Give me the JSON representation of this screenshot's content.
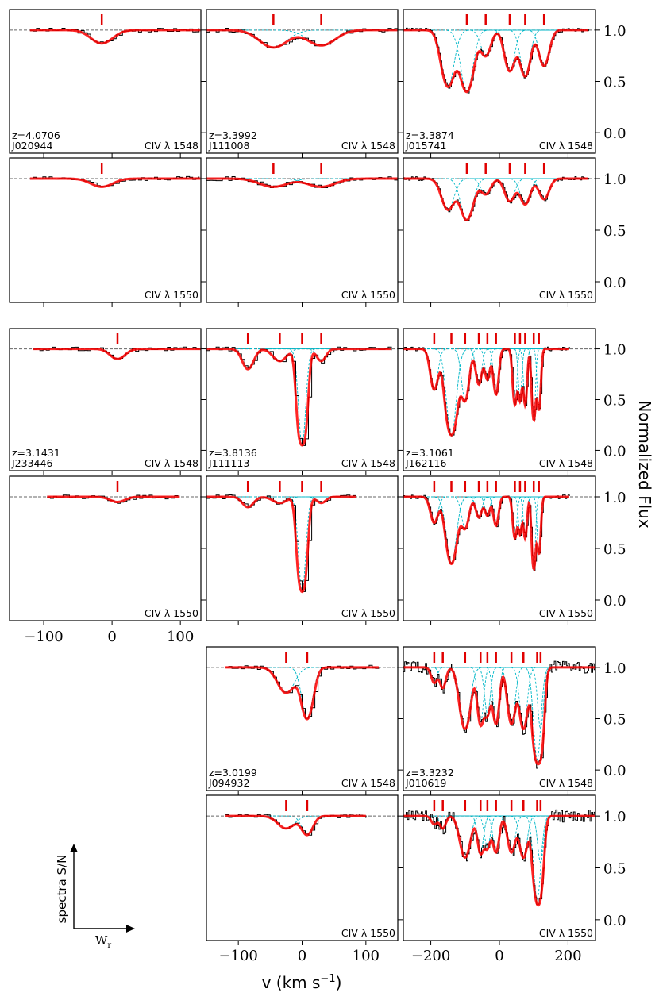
{
  "figure": {
    "ylabel": "Normalized Flux",
    "xlabel_main": "v (km s",
    "xlabel_sup": "−1",
    "xlabel_close": ")",
    "legend_axis_y": "spectra S/N",
    "legend_axis_x": "W",
    "legend_axis_x_sub": "r"
  },
  "chart_data": {
    "type": "line",
    "x_range_left": [
      -150,
      130
    ],
    "x_range_mid": [
      -150,
      150
    ],
    "x_range_right": [
      -280,
      280
    ],
    "y_range": [
      -0.2,
      1.2
    ],
    "ticks_x_left": [
      "−100",
      "0",
      "100"
    ],
    "ticks_x_mid": [
      "−100",
      "0",
      "100"
    ],
    "ticks_x_right": [
      "−200",
      "0",
      "200"
    ],
    "ticks_y": [
      "0.0",
      "0.5",
      "1.0"
    ],
    "colors": {
      "data": "#000000",
      "fit": "#ff0000",
      "component": "#00b7c7",
      "marker": "#e00000",
      "continuum": "#666666"
    },
    "panels": [
      {
        "row": 0,
        "col": 0,
        "line": "CIV λ 1548",
        "z": "z=4.0706",
        "id": "J020944",
        "vrange": [
          -120,
          130
        ],
        "comps": [
          {
            "v": -15,
            "d": 0.13,
            "b": 22
          }
        ],
        "marks": [
          -15
        ]
      },
      {
        "row": 0,
        "col": 1,
        "line": "CIV λ 1548",
        "z": "z=3.3992",
        "id": "J111008",
        "vrange": [
          -150,
          150
        ],
        "comps": [
          {
            "v": -45,
            "d": 0.17,
            "b": 30
          },
          {
            "v": 30,
            "d": 0.15,
            "b": 30
          }
        ],
        "marks": [
          -45,
          30
        ]
      },
      {
        "row": 0,
        "col": 2,
        "line": "CIV λ 1548",
        "z": "z=3.3874",
        "id": "J015741",
        "vrange": [
          -280,
          260
        ],
        "comps": [
          {
            "v": -150,
            "d": 0.55,
            "b": 25
          },
          {
            "v": -95,
            "d": 0.6,
            "b": 25
          },
          {
            "v": -40,
            "d": 0.25,
            "b": 20
          },
          {
            "v": 30,
            "d": 0.4,
            "b": 20
          },
          {
            "v": 75,
            "d": 0.45,
            "b": 20
          },
          {
            "v": 130,
            "d": 0.35,
            "b": 20
          }
        ],
        "marks": [
          -95,
          -40,
          30,
          75,
          130
        ]
      },
      {
        "row": 1,
        "col": 0,
        "line": "CIV λ 1550",
        "z": "",
        "id": "",
        "vrange": [
          -120,
          130
        ],
        "comps": [
          {
            "v": -15,
            "d": 0.08,
            "b": 22
          }
        ],
        "marks": [
          -15
        ]
      },
      {
        "row": 1,
        "col": 1,
        "line": "CIV λ 1550",
        "z": "",
        "id": "",
        "vrange": [
          -150,
          150
        ],
        "comps": [
          {
            "v": -45,
            "d": 0.08,
            "b": 30
          },
          {
            "v": 30,
            "d": 0.08,
            "b": 30
          }
        ],
        "marks": [
          -45,
          30
        ]
      },
      {
        "row": 1,
        "col": 2,
        "line": "CIV λ 1550",
        "z": "",
        "id": "",
        "vrange": [
          -280,
          260
        ],
        "comps": [
          {
            "v": -150,
            "d": 0.3,
            "b": 25
          },
          {
            "v": -95,
            "d": 0.4,
            "b": 25
          },
          {
            "v": -40,
            "d": 0.15,
            "b": 20
          },
          {
            "v": 30,
            "d": 0.22,
            "b": 20
          },
          {
            "v": 75,
            "d": 0.25,
            "b": 20
          },
          {
            "v": 130,
            "d": 0.2,
            "b": 20
          }
        ],
        "marks": [
          -95,
          -40,
          30,
          75,
          130
        ]
      },
      {
        "row": 2,
        "col": 0,
        "line": "CIV λ 1548",
        "z": "z=3.1431",
        "id": "J233446",
        "vrange": [
          -115,
          130
        ],
        "comps": [
          {
            "v": 8,
            "d": 0.1,
            "b": 15
          }
        ],
        "marks": [
          8
        ]
      },
      {
        "row": 2,
        "col": 1,
        "line": "CIV λ 1548",
        "z": "z=3.8136",
        "id": "J111113",
        "vrange": [
          -150,
          140
        ],
        "comps": [
          {
            "v": -85,
            "d": 0.2,
            "b": 12
          },
          {
            "v": -35,
            "d": 0.12,
            "b": 15
          },
          {
            "v": 0,
            "d": 0.95,
            "b": 8
          },
          {
            "v": 30,
            "d": 0.12,
            "b": 10
          }
        ],
        "marks": [
          -85,
          -35,
          0,
          30
        ]
      },
      {
        "row": 2,
        "col": 2,
        "line": "CIV λ 1548",
        "z": "z=3.1061",
        "id": "J162116",
        "vrange": [
          -280,
          205
        ],
        "comps": [
          {
            "v": -190,
            "d": 0.4,
            "b": 15
          },
          {
            "v": -140,
            "d": 0.85,
            "b": 20
          },
          {
            "v": -100,
            "d": 0.5,
            "b": 15
          },
          {
            "v": -60,
            "d": 0.35,
            "b": 12
          },
          {
            "v": -35,
            "d": 0.3,
            "b": 10
          },
          {
            "v": -10,
            "d": 0.45,
            "b": 10
          },
          {
            "v": 45,
            "d": 0.55,
            "b": 8
          },
          {
            "v": 60,
            "d": 0.5,
            "b": 7
          },
          {
            "v": 75,
            "d": 0.55,
            "b": 7
          },
          {
            "v": 100,
            "d": 0.7,
            "b": 7
          },
          {
            "v": 115,
            "d": 0.6,
            "b": 7
          }
        ],
        "marks": [
          -190,
          -140,
          -100,
          -60,
          -35,
          -10,
          45,
          60,
          75,
          100,
          115
        ]
      },
      {
        "row": 3,
        "col": 0,
        "line": "CIV λ 1550",
        "z": "",
        "id": "",
        "vrange": [
          -95,
          100
        ],
        "comps": [
          {
            "v": 8,
            "d": 0.05,
            "b": 15
          }
        ],
        "marks": [
          8
        ]
      },
      {
        "row": 3,
        "col": 1,
        "line": "CIV λ 1550",
        "z": "",
        "id": "",
        "vrange": [
          -150,
          85
        ],
        "comps": [
          {
            "v": -85,
            "d": 0.1,
            "b": 12
          },
          {
            "v": -35,
            "d": 0.06,
            "b": 15
          },
          {
            "v": 0,
            "d": 0.92,
            "b": 8
          },
          {
            "v": 30,
            "d": 0.06,
            "b": 10
          }
        ],
        "marks": [
          -85,
          -35,
          0,
          30
        ]
      },
      {
        "row": 3,
        "col": 2,
        "line": "CIV λ 1550",
        "z": "",
        "id": "",
        "vrange": [
          -280,
          205
        ],
        "comps": [
          {
            "v": -190,
            "d": 0.25,
            "b": 15
          },
          {
            "v": -140,
            "d": 0.65,
            "b": 20
          },
          {
            "v": -100,
            "d": 0.3,
            "b": 15
          },
          {
            "v": -60,
            "d": 0.2,
            "b": 12
          },
          {
            "v": -35,
            "d": 0.18,
            "b": 10
          },
          {
            "v": -10,
            "d": 0.28,
            "b": 10
          },
          {
            "v": 45,
            "d": 0.4,
            "b": 8
          },
          {
            "v": 60,
            "d": 0.35,
            "b": 7
          },
          {
            "v": 75,
            "d": 0.4,
            "b": 7
          },
          {
            "v": 100,
            "d": 0.7,
            "b": 7
          },
          {
            "v": 115,
            "d": 0.55,
            "b": 7
          }
        ],
        "marks": [
          -190,
          -140,
          -100,
          -60,
          -35,
          -10,
          45,
          60,
          75,
          100,
          115
        ]
      },
      {
        "row": 4,
        "col": 1,
        "line": "CIV λ 1548",
        "z": "z=3.0199",
        "id": "J094932",
        "vrange": [
          -120,
          120
        ],
        "comps": [
          {
            "v": -25,
            "d": 0.25,
            "b": 18
          },
          {
            "v": 8,
            "d": 0.5,
            "b": 12
          }
        ],
        "marks": [
          -25,
          8
        ]
      },
      {
        "row": 4,
        "col": 2,
        "line": "CIV λ 1548",
        "z": "z=3.3232",
        "id": "J010619",
        "vrange": [
          -280,
          280
        ],
        "comps": [
          {
            "v": -190,
            "d": 0.15,
            "b": 12
          },
          {
            "v": -165,
            "d": 0.2,
            "b": 12
          },
          {
            "v": -100,
            "d": 0.6,
            "b": 20
          },
          {
            "v": -55,
            "d": 0.55,
            "b": 12
          },
          {
            "v": -35,
            "d": 0.45,
            "b": 12
          },
          {
            "v": -10,
            "d": 0.55,
            "b": 12
          },
          {
            "v": 35,
            "d": 0.55,
            "b": 15
          },
          {
            "v": 70,
            "d": 0.6,
            "b": 15
          },
          {
            "v": 110,
            "d": 0.9,
            "b": 15
          },
          {
            "v": 120,
            "d": 0.6,
            "b": 12
          }
        ],
        "marks": [
          -190,
          -165,
          -100,
          -55,
          -35,
          -10,
          35,
          70,
          110,
          120
        ]
      },
      {
        "row": 5,
        "col": 1,
        "line": "CIV λ 1550",
        "z": "",
        "id": "",
        "vrange": [
          -120,
          100
        ],
        "comps": [
          {
            "v": -25,
            "d": 0.12,
            "b": 18
          },
          {
            "v": 8,
            "d": 0.18,
            "b": 12
          }
        ],
        "marks": [
          -25,
          8
        ]
      },
      {
        "row": 5,
        "col": 2,
        "line": "CIV λ 1550",
        "z": "",
        "id": "",
        "vrange": [
          -280,
          280
        ],
        "comps": [
          {
            "v": -190,
            "d": 0.08,
            "b": 12
          },
          {
            "v": -165,
            "d": 0.12,
            "b": 12
          },
          {
            "v": -100,
            "d": 0.4,
            "b": 20
          },
          {
            "v": -55,
            "d": 0.35,
            "b": 12
          },
          {
            "v": -35,
            "d": 0.3,
            "b": 12
          },
          {
            "v": -10,
            "d": 0.35,
            "b": 12
          },
          {
            "v": 35,
            "d": 0.35,
            "b": 15
          },
          {
            "v": 70,
            "d": 0.4,
            "b": 15
          },
          {
            "v": 110,
            "d": 0.8,
            "b": 15
          },
          {
            "v": 120,
            "d": 0.45,
            "b": 12
          }
        ],
        "marks": [
          -190,
          -165,
          -100,
          -55,
          -35,
          -10,
          35,
          70,
          110,
          120
        ]
      }
    ]
  }
}
